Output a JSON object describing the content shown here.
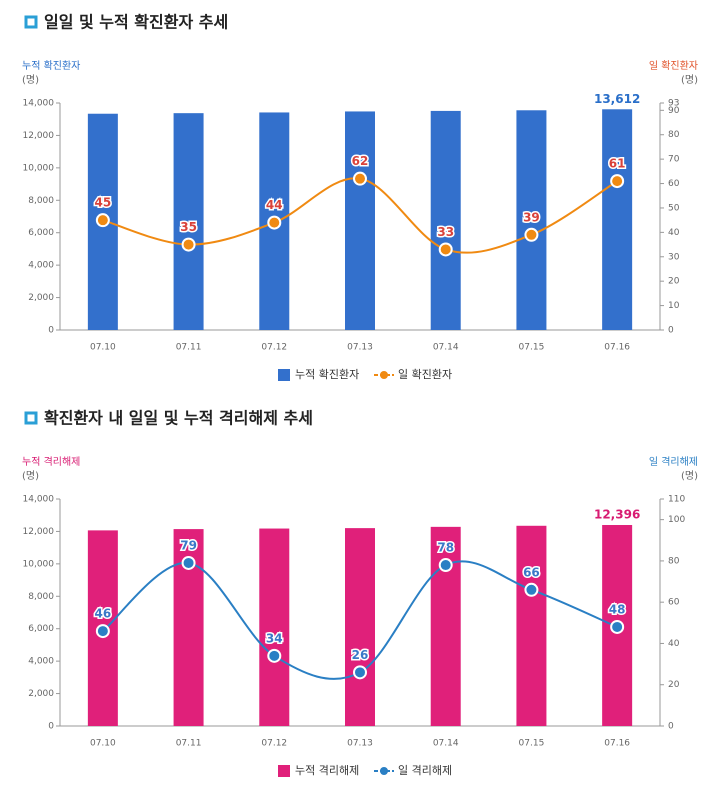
{
  "chart_data": [
    {
      "type": "bar_line",
      "title": "일일 및 누적 확진환자 추세",
      "y_label": "누적 확진환자",
      "y_unit": "(명)",
      "y2_label": "일 확진환자",
      "y2_unit": "(명)",
      "y_label_color": "#2a6fc9",
      "y2_label_color": "#e0522a",
      "categories": [
        "07.10",
        "07.11",
        "07.12",
        "07.13",
        "07.14",
        "07.15",
        "07.16"
      ],
      "series": [
        {
          "name": "누적 확진환자",
          "type": "bar",
          "color": "#3370cc",
          "values": [
            13338,
            13373,
            13417,
            13479,
            13512,
            13551,
            13612
          ],
          "value_labels": [
            null,
            null,
            null,
            null,
            null,
            null,
            "13,612"
          ],
          "label_color": "#2a6fc9"
        },
        {
          "name": "일 확진환자",
          "type": "line",
          "axis": "y2",
          "color": "#f08a12",
          "values": [
            45,
            35,
            44,
            62,
            33,
            39,
            61
          ],
          "label_color": "#d9423a"
        }
      ],
      "ylim": [
        0,
        14000
      ],
      "yticks": [
        0,
        {
          "value": 2000,
          "label": "2,000"
        },
        {
          "value": 4000,
          "label": "4,000"
        },
        {
          "value": 6000,
          "label": "6,000"
        },
        {
          "value": 8000,
          "label": "8,000"
        },
        {
          "value": 10000,
          "label": "10,000"
        },
        {
          "value": 12000,
          "label": "12,000"
        },
        {
          "value": 14000,
          "label": "14,000"
        }
      ],
      "y2lim": [
        0,
        93
      ],
      "y2ticks": [
        0,
        10,
        20,
        30,
        40,
        50,
        60,
        70,
        80,
        90,
        93
      ]
    },
    {
      "type": "bar_line",
      "title": "확진환자 내 일일 및 누적 격리해제 추세",
      "y_label": "누적 격리해제",
      "y_unit": "(명)",
      "y2_label": "일 격리해제",
      "y2_unit": "(명)",
      "y_label_color": "#d81b72",
      "y2_label_color": "#2a7fc4",
      "categories": [
        "07.10",
        "07.11",
        "07.12",
        "07.13",
        "07.14",
        "07.15",
        "07.16"
      ],
      "series": [
        {
          "name": "누적 격리해제",
          "type": "bar",
          "color": "#e0207a",
          "values": [
            12065,
            12144,
            12178,
            12204,
            12282,
            12348,
            12396
          ],
          "value_labels": [
            null,
            null,
            null,
            null,
            null,
            null,
            "12,396"
          ],
          "label_color": "#d81b72"
        },
        {
          "name": "일 격리해제",
          "type": "line",
          "axis": "y2",
          "color": "#2a7fc4",
          "values": [
            46,
            79,
            34,
            26,
            78,
            66,
            48
          ],
          "label_color": "#3a78c8"
        }
      ],
      "ylim": [
        0,
        14000
      ],
      "yticks": [
        0,
        {
          "value": 2000,
          "label": "2,000"
        },
        {
          "value": 4000,
          "label": "4,000"
        },
        {
          "value": 6000,
          "label": "6,000"
        },
        {
          "value": 8000,
          "label": "8,000"
        },
        {
          "value": 10000,
          "label": "10,000"
        },
        {
          "value": 12000,
          "label": "12,000"
        },
        {
          "value": 14000,
          "label": "14,000"
        }
      ],
      "y2lim": [
        0,
        110
      ],
      "y2ticks": [
        0,
        20,
        40,
        60,
        80,
        100,
        110
      ]
    }
  ]
}
